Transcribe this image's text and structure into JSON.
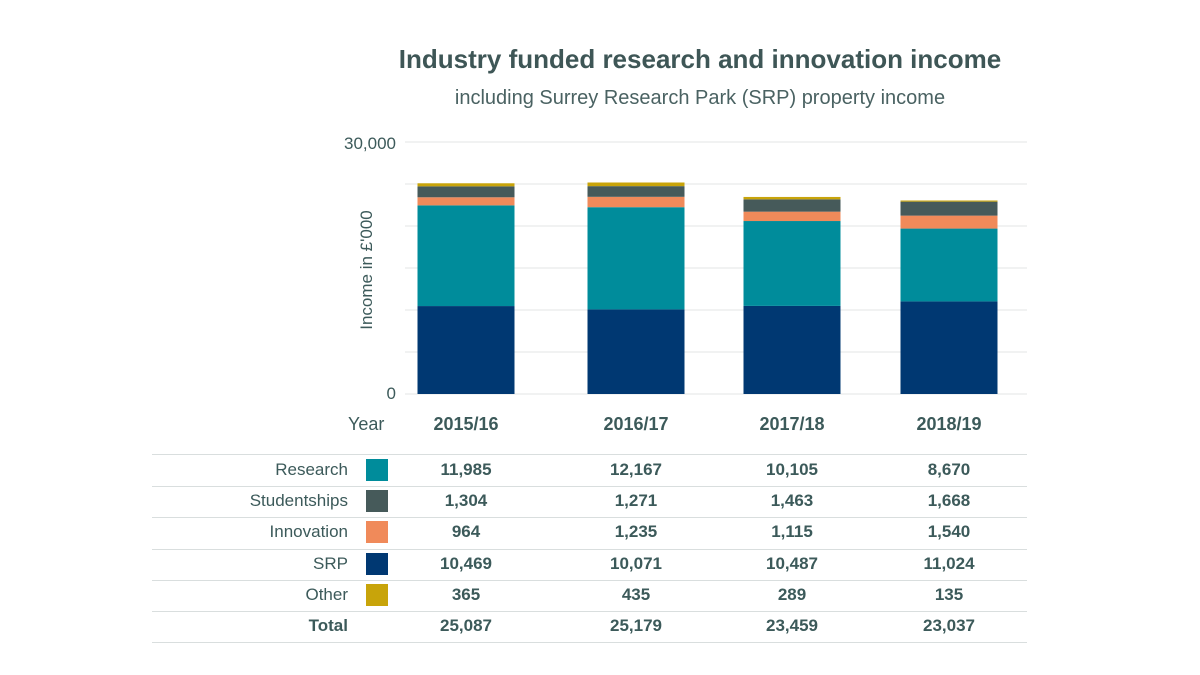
{
  "chart_data": {
    "type": "bar",
    "stacked": true,
    "title": "Industry funded research and innovation income",
    "subtitle": "including Surrey Research Park (SRP) property income",
    "ylabel": "Income in £'000",
    "xlabel": "Year",
    "ylim": [
      0,
      30000
    ],
    "yticks": [
      "0",
      "30,000"
    ],
    "grid": true,
    "categories": [
      "2015/16",
      "2016/17",
      "2017/18",
      "2018/19"
    ],
    "series": [
      {
        "name": "SRP",
        "color": "#003872",
        "values": [
          10469,
          10071,
          10487,
          11024
        ]
      },
      {
        "name": "Research",
        "color": "#008c9b",
        "values": [
          11985,
          12167,
          10105,
          8670
        ]
      },
      {
        "name": "Innovation",
        "color": "#f08a5a",
        "values": [
          964,
          1235,
          1115,
          1540
        ]
      },
      {
        "name": "Studentships",
        "color": "#465a5a",
        "values": [
          1304,
          1271,
          1463,
          1668
        ]
      },
      {
        "name": "Other",
        "color": "#c8a40a",
        "values": [
          365,
          435,
          289,
          135
        ]
      }
    ]
  },
  "table": {
    "year_label": "Year",
    "rows": [
      {
        "label": "Research",
        "color": "#008c9b",
        "values": [
          "11,985",
          "12,167",
          "10,105",
          "8,670"
        ]
      },
      {
        "label": "Studentships",
        "color": "#465a5a",
        "values": [
          "1,304",
          "1,271",
          "1,463",
          "1,668"
        ]
      },
      {
        "label": "Innovation",
        "color": "#f08a5a",
        "values": [
          "964",
          "1,235",
          "1,115",
          "1,540"
        ]
      },
      {
        "label": "SRP",
        "color": "#003872",
        "values": [
          "10,469",
          "10,071",
          "10,487",
          "11,024"
        ]
      },
      {
        "label": "Other",
        "color": "#c8a40a",
        "values": [
          "365",
          "435",
          "289",
          "135"
        ]
      }
    ],
    "total": {
      "label": "Total",
      "values": [
        "25,087",
        "25,179",
        "23,459",
        "23,037"
      ]
    }
  }
}
